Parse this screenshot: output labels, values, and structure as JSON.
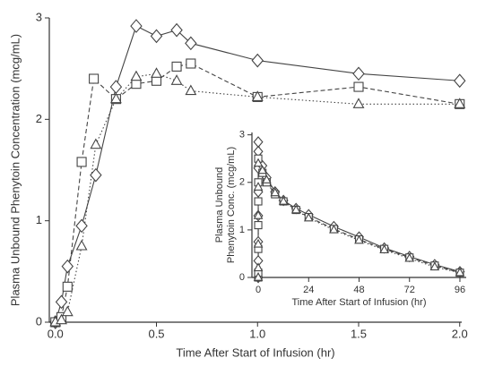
{
  "chart_data": [
    {
      "type": "line",
      "xlabel": "Time After Start of Infusion (hr)",
      "ylabel": "Plasma Unbound Phenytoin Concentration (mcg/mL)",
      "xlim": [
        -0.03,
        2.01
      ],
      "ylim": [
        0,
        3
      ],
      "xticks": [
        {
          "value": 0,
          "label": "0.0"
        },
        {
          "value": 0.5,
          "label": "0.5"
        },
        {
          "value": 1,
          "label": "1.0"
        },
        {
          "value": 1.5,
          "label": "1.5"
        },
        {
          "value": 2,
          "label": "2.0"
        }
      ],
      "yticks": [
        0,
        1,
        2,
        3
      ],
      "series": [
        {
          "color": "#444444",
          "marker": "diamond",
          "dash": "solid",
          "x": [
            0,
            0.03,
            0.06,
            0.13,
            0.2,
            0.3,
            0.4,
            0.5,
            0.6,
            0.67,
            1.0,
            1.5,
            2.0
          ],
          "values": [
            0,
            0.2,
            0.55,
            0.95,
            1.45,
            2.32,
            2.92,
            2.82,
            2.88,
            2.75,
            2.58,
            2.45,
            2.38
          ]
        },
        {
          "color": "#444444",
          "marker": "square",
          "dash": "dashed",
          "x": [
            0,
            0.03,
            0.06,
            0.13,
            0.19,
            0.3,
            0.4,
            0.5,
            0.6,
            0.67,
            1.0,
            1.5,
            2.0
          ],
          "values": [
            0,
            0.05,
            0.35,
            1.58,
            2.4,
            2.2,
            2.35,
            2.38,
            2.52,
            2.55,
            2.22,
            2.32,
            2.15
          ]
        },
        {
          "color": "#444444",
          "marker": "triangle",
          "dash": "dotted",
          "x": [
            0,
            0.03,
            0.06,
            0.13,
            0.2,
            0.3,
            0.4,
            0.5,
            0.6,
            0.67,
            1.0,
            1.5,
            2.0
          ],
          "values": [
            0,
            0.02,
            0.1,
            0.75,
            1.75,
            2.2,
            2.42,
            2.45,
            2.38,
            2.28,
            2.22,
            2.15,
            2.15
          ]
        }
      ]
    },
    {
      "type": "line",
      "xlabel": "Time After Start of Infusion (hr)",
      "ylabel": [
        "Plasma Unbound",
        "Phenytoin Conc. (mcg/mL)"
      ],
      "xlim": [
        -3,
        99
      ],
      "ylim": [
        0,
        3.05
      ],
      "xticks": [
        0,
        24,
        48,
        72,
        96
      ],
      "yticks": [
        0,
        1,
        2,
        3
      ],
      "series": [
        {
          "color": "#444444",
          "marker": "diamond",
          "dash": "solid",
          "x": [
            0,
            0,
            0,
            0,
            0,
            0,
            0,
            0,
            2,
            4,
            8,
            12,
            18,
            24,
            36,
            48,
            60,
            72,
            84,
            96
          ],
          "values": [
            0,
            0.35,
            0.75,
            1.3,
            1.8,
            2.3,
            2.65,
            2.85,
            2.35,
            2.1,
            1.8,
            1.62,
            1.45,
            1.32,
            1.07,
            0.85,
            0.62,
            0.44,
            0.27,
            0.12
          ]
        },
        {
          "color": "#444444",
          "marker": "square",
          "dash": "dashed",
          "x": [
            0,
            0,
            0,
            0,
            0,
            0,
            0,
            2,
            4,
            8,
            12,
            18,
            24,
            36,
            48,
            60,
            72,
            84,
            96
          ],
          "values": [
            0,
            0.1,
            0.6,
            1.1,
            1.6,
            2.0,
            2.5,
            2.2,
            2.0,
            1.75,
            1.6,
            1.42,
            1.27,
            1.02,
            0.8,
            0.6,
            0.42,
            0.25,
            0.1
          ]
        },
        {
          "color": "#444444",
          "marker": "triangle",
          "dash": "dotted",
          "x": [
            0,
            0,
            0,
            0,
            0,
            0,
            2,
            4,
            8,
            12,
            18,
            24,
            36,
            48,
            60,
            72,
            84,
            96
          ],
          "values": [
            0,
            0.2,
            0.7,
            1.3,
            1.9,
            2.4,
            2.25,
            2.05,
            1.78,
            1.6,
            1.42,
            1.25,
            1.0,
            0.78,
            0.58,
            0.4,
            0.22,
            0.1
          ]
        }
      ]
    }
  ]
}
